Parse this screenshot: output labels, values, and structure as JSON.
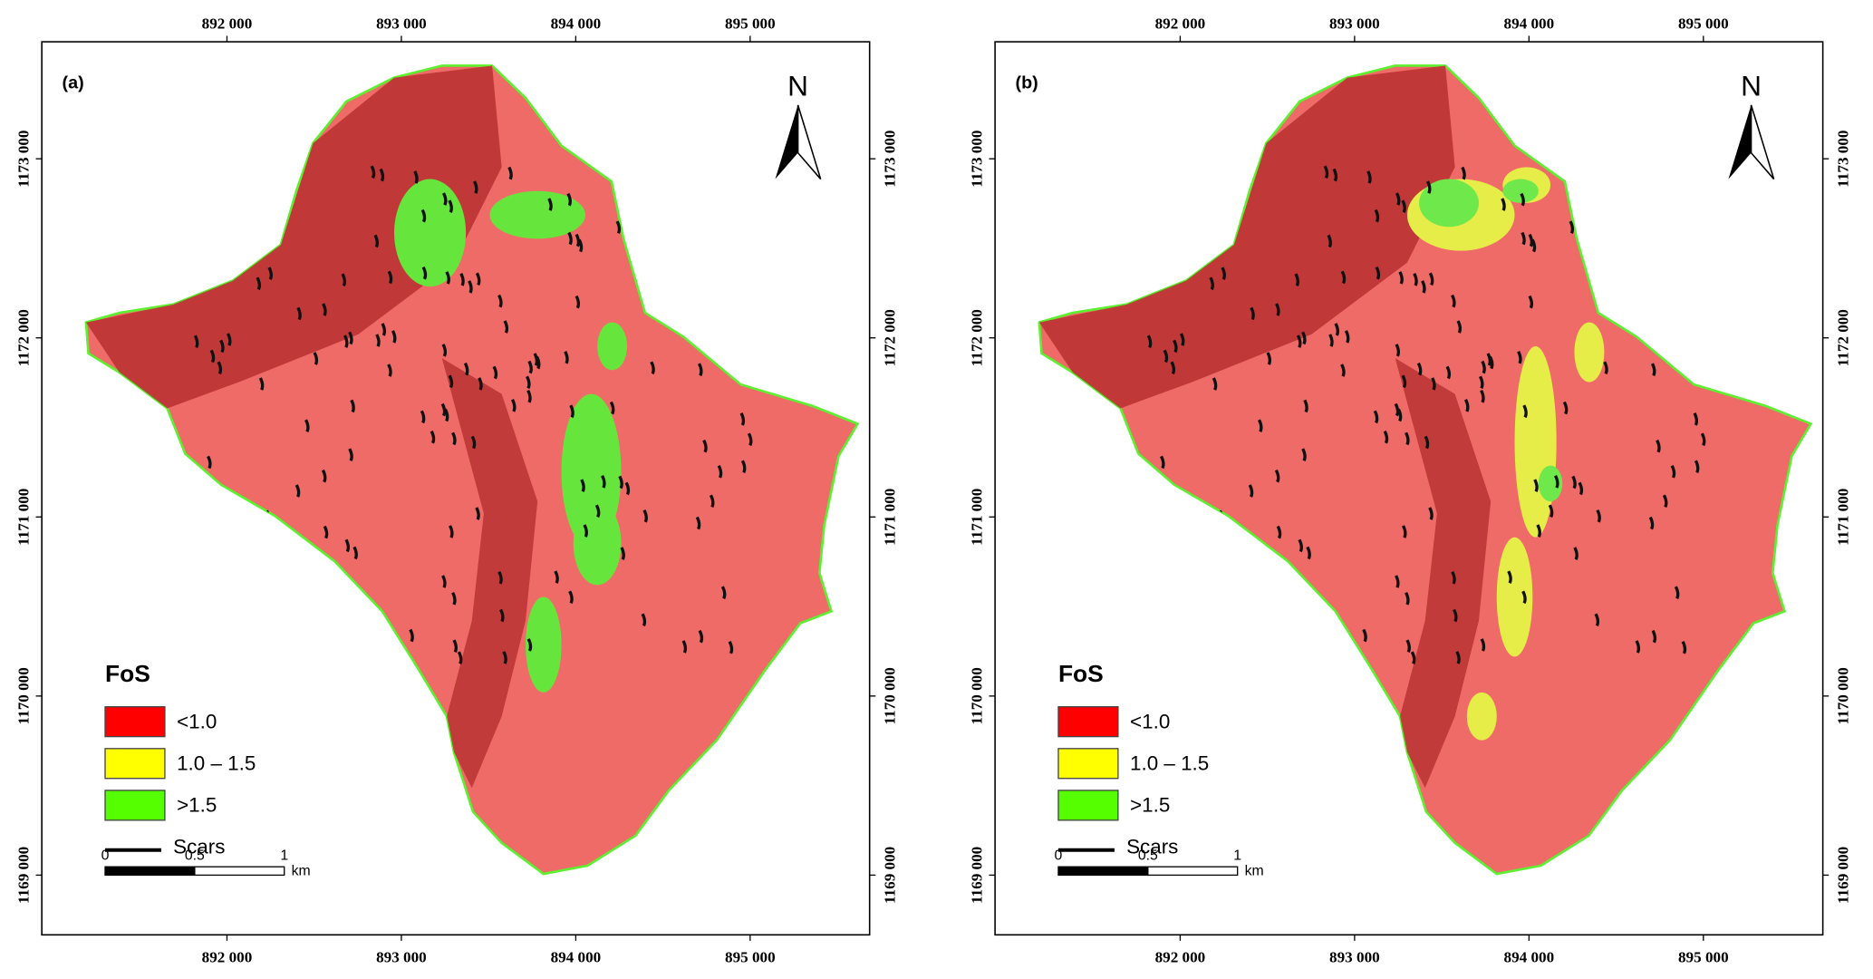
{
  "panels": [
    {
      "label": "(a)"
    },
    {
      "label": "(b)"
    }
  ],
  "x_ticks": [
    {
      "value": 892000,
      "label": "892 000"
    },
    {
      "value": 893000,
      "label": "893 000"
    },
    {
      "value": 894000,
      "label": "894 000"
    },
    {
      "value": 895000,
      "label": "895 000"
    }
  ],
  "y_ticks": [
    {
      "value": 1169000,
      "label": "1169 000"
    },
    {
      "value": 1170000,
      "label": "1170 000"
    },
    {
      "value": 1171000,
      "label": "1171 000"
    },
    {
      "value": 1172000,
      "label": "1172 000"
    },
    {
      "value": 1173000,
      "label": "1173 000"
    }
  ],
  "legend": {
    "title": "FoS",
    "items": [
      {
        "label": "<1.0",
        "color": "#ff0000"
      },
      {
        "label": "1.0 – 1.5",
        "color": "#ffff00"
      },
      {
        "label": ">1.5",
        "color": "#55ff00"
      },
      {
        "label": "Scars",
        "color": "#000000"
      }
    ]
  },
  "scale_bar": {
    "labels": [
      "0",
      "0.5",
      "1"
    ],
    "unit": "km"
  },
  "north": "N"
}
